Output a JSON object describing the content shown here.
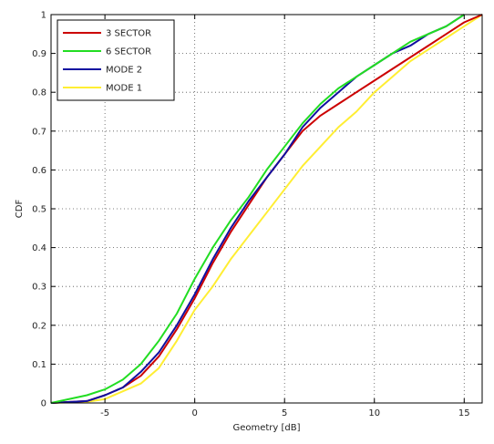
{
  "chart_data": {
    "type": "line",
    "xlabel": "Geometry [dB]",
    "ylabel": "CDF",
    "xlim": [
      -8,
      16
    ],
    "ylim": [
      0,
      1
    ],
    "xticks": [
      -5,
      0,
      5,
      10,
      15
    ],
    "yticks": [
      0,
      0.1,
      0.2,
      0.3,
      0.4,
      0.5,
      0.6,
      0.7,
      0.8,
      0.9,
      1
    ],
    "xtick_labels": [
      "-5",
      "0",
      "5",
      "10",
      "15"
    ],
    "ytick_labels": [
      "0",
      "0.1",
      "0.2",
      "0.3",
      "0.4",
      "0.5",
      "0.6",
      "0.7",
      "0.8",
      "0.9",
      "1"
    ],
    "grid": true,
    "legend_position": "top-left",
    "series": [
      {
        "name": "3 SECTOR",
        "color": "#cc0000",
        "x": [
          -8,
          -6,
          -5,
          -4,
          -3,
          -2,
          -1,
          0,
          1,
          2,
          3,
          4,
          5,
          6,
          7,
          8,
          9,
          10,
          11,
          12,
          13,
          14,
          15,
          16
        ],
        "y": [
          0,
          0.005,
          0.02,
          0.04,
          0.07,
          0.12,
          0.19,
          0.27,
          0.36,
          0.44,
          0.51,
          0.58,
          0.64,
          0.7,
          0.74,
          0.77,
          0.8,
          0.83,
          0.86,
          0.89,
          0.92,
          0.95,
          0.98,
          1.0
        ]
      },
      {
        "name": "6 SECTOR",
        "color": "#22dd22",
        "x": [
          -8,
          -6,
          -5,
          -4,
          -3,
          -2,
          -1,
          0,
          1,
          2,
          3,
          4,
          5,
          6,
          7,
          8,
          9,
          10,
          11,
          12,
          13,
          14,
          15
        ],
        "y": [
          0,
          0.02,
          0.035,
          0.06,
          0.1,
          0.16,
          0.23,
          0.32,
          0.4,
          0.47,
          0.53,
          0.6,
          0.66,
          0.72,
          0.77,
          0.81,
          0.84,
          0.87,
          0.9,
          0.93,
          0.95,
          0.97,
          1.0
        ]
      },
      {
        "name": "MODE 2",
        "color": "#1010a0",
        "x": [
          -8,
          -6,
          -5,
          -4,
          -3,
          -2,
          -1,
          0,
          1,
          2,
          3,
          4,
          5,
          6,
          7,
          8,
          9,
          10,
          11,
          12,
          13,
          14,
          15
        ],
        "y": [
          0,
          0.005,
          0.02,
          0.04,
          0.08,
          0.13,
          0.2,
          0.28,
          0.37,
          0.45,
          0.52,
          0.58,
          0.64,
          0.71,
          0.76,
          0.8,
          0.84,
          0.87,
          0.9,
          0.92,
          0.95,
          0.97,
          1.0
        ]
      },
      {
        "name": "MODE 1",
        "color": "#ffee33",
        "x": [
          -8,
          -6,
          -5,
          -4,
          -3,
          -2,
          -1,
          0,
          1,
          2,
          3,
          4,
          5,
          6,
          7,
          8,
          9,
          10,
          11,
          12,
          13,
          14,
          15,
          16
        ],
        "y": [
          0,
          0.003,
          0.01,
          0.03,
          0.05,
          0.09,
          0.16,
          0.24,
          0.3,
          0.37,
          0.43,
          0.49,
          0.55,
          0.61,
          0.66,
          0.71,
          0.75,
          0.8,
          0.84,
          0.88,
          0.91,
          0.94,
          0.97,
          1.0
        ]
      }
    ]
  }
}
